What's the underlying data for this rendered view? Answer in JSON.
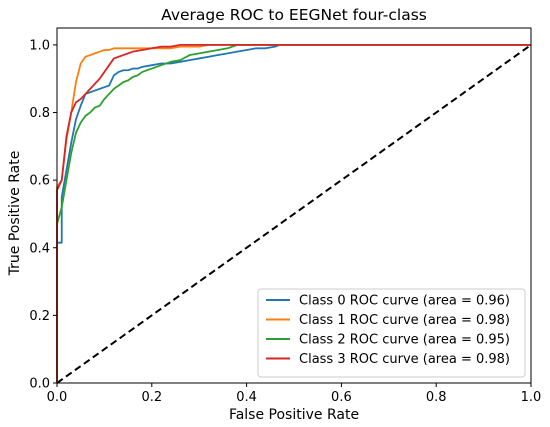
{
  "chart_data": {
    "type": "line",
    "title": "Average ROC to EEGNet four-class",
    "xlabel": "False Positive Rate",
    "ylabel": "True Positive Rate",
    "xlim": [
      0,
      1
    ],
    "ylim": [
      0,
      1.05
    ],
    "xticks": [
      "0.0",
      "0.2",
      "0.4",
      "0.6",
      "0.8",
      "1.0"
    ],
    "yticks": [
      "0.0",
      "0.2",
      "0.4",
      "0.6",
      "0.8",
      "1.0"
    ],
    "grid": false,
    "legend_position": "lower-right",
    "series": [
      {
        "name": "Class 0 ROC curve (area = 0.96)",
        "color": "#1f77b4",
        "x": [
          0,
          0,
          0.01,
          0.01,
          0.02,
          0.03,
          0.04,
          0.05,
          0.06,
          0.07,
          0.08,
          0.09,
          0.1,
          0.11,
          0.12,
          0.13,
          0.14,
          0.15,
          0.16,
          0.17,
          0.18,
          0.2,
          0.22,
          0.24,
          0.26,
          0.28,
          0.3,
          0.32,
          0.34,
          0.36,
          0.38,
          0.4,
          0.42,
          0.44,
          0.46,
          0.47,
          1.0
        ],
        "y": [
          0,
          0.415,
          0.415,
          0.55,
          0.63,
          0.71,
          0.78,
          0.82,
          0.855,
          0.86,
          0.865,
          0.87,
          0.875,
          0.88,
          0.91,
          0.92,
          0.925,
          0.925,
          0.93,
          0.93,
          0.935,
          0.94,
          0.945,
          0.945,
          0.95,
          0.955,
          0.96,
          0.965,
          0.97,
          0.975,
          0.98,
          0.985,
          0.99,
          0.99,
          0.995,
          1.0,
          1.0
        ]
      },
      {
        "name": "Class 1 ROC curve (area = 0.98)",
        "color": "#ff7f0e",
        "x": [
          0,
          0,
          0.01,
          0.02,
          0.03,
          0.04,
          0.05,
          0.06,
          0.07,
          0.08,
          0.09,
          0.1,
          0.11,
          0.12,
          0.14,
          0.16,
          0.18,
          0.2,
          0.22,
          0.24,
          0.26,
          0.28,
          0.3,
          0.32,
          0.34,
          1.0
        ],
        "y": [
          0,
          0.58,
          0.6,
          0.72,
          0.8,
          0.89,
          0.945,
          0.965,
          0.97,
          0.975,
          0.98,
          0.985,
          0.985,
          0.99,
          0.99,
          0.99,
          0.99,
          0.99,
          0.99,
          0.99,
          0.995,
          0.995,
          0.995,
          1.0,
          1.0,
          1.0
        ]
      },
      {
        "name": "Class 2 ROC curve (area = 0.95)",
        "color": "#2ca02c",
        "x": [
          0,
          0,
          0.01,
          0.02,
          0.03,
          0.04,
          0.05,
          0.06,
          0.07,
          0.08,
          0.09,
          0.1,
          0.11,
          0.12,
          0.13,
          0.14,
          0.15,
          0.16,
          0.17,
          0.18,
          0.2,
          0.22,
          0.24,
          0.26,
          0.28,
          0.3,
          0.32,
          0.34,
          0.36,
          0.38,
          1.0
        ],
        "y": [
          0,
          0.47,
          0.52,
          0.6,
          0.68,
          0.74,
          0.77,
          0.79,
          0.8,
          0.815,
          0.82,
          0.84,
          0.855,
          0.87,
          0.88,
          0.89,
          0.895,
          0.905,
          0.91,
          0.92,
          0.93,
          0.94,
          0.95,
          0.955,
          0.97,
          0.975,
          0.98,
          0.985,
          0.99,
          1.0,
          1.0
        ]
      },
      {
        "name": "Class 3 ROC curve (area = 0.98)",
        "color": "#d62728",
        "x": [
          0,
          0,
          0.01,
          0.02,
          0.03,
          0.04,
          0.05,
          0.06,
          0.07,
          0.08,
          0.09,
          0.1,
          0.11,
          0.12,
          0.13,
          0.14,
          0.15,
          0.16,
          0.18,
          0.2,
          0.22,
          0.24,
          0.26,
          0.28,
          1.0
        ],
        "y": [
          0,
          0.57,
          0.6,
          0.73,
          0.8,
          0.83,
          0.84,
          0.855,
          0.87,
          0.885,
          0.9,
          0.92,
          0.94,
          0.96,
          0.965,
          0.97,
          0.975,
          0.98,
          0.985,
          0.99,
          0.995,
          0.995,
          1.0,
          1.0,
          1.0
        ]
      }
    ],
    "reference_line": {
      "x": [
        0,
        1
      ],
      "y": [
        0,
        1
      ],
      "color": "#000000",
      "style": "dashed"
    }
  }
}
